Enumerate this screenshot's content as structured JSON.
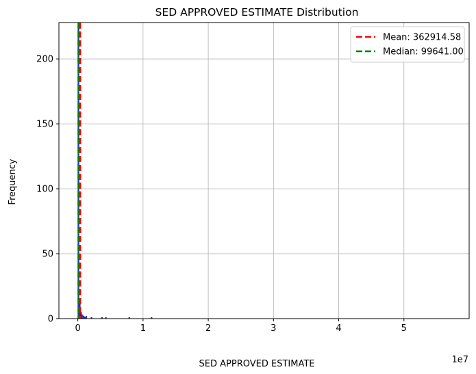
{
  "chart_data": {
    "type": "histogram",
    "title": "SED APPROVED ESTIMATE Distribution",
    "xlabel": "SED APPROVED ESTIMATE",
    "ylabel": "Frequency",
    "x_scale_label": "1e7",
    "xlim": [
      -2900000,
      60000000
    ],
    "ylim": [
      0,
      228
    ],
    "x_ticks": [
      0,
      10000000,
      20000000,
      30000000,
      40000000,
      50000000
    ],
    "x_tick_labels": [
      "0",
      "1",
      "2",
      "3",
      "4",
      "5"
    ],
    "y_ticks": [
      0,
      50,
      100,
      150,
      200
    ],
    "y_tick_labels": [
      "0",
      "50",
      "100",
      "150",
      "200"
    ],
    "grid": true,
    "bar_color": "#3333cc",
    "bins": [
      {
        "x0": 0,
        "x1": 200000,
        "count": 226
      },
      {
        "x0": 200000,
        "x1": 400000,
        "count": 14
      },
      {
        "x0": 400000,
        "x1": 600000,
        "count": 5
      },
      {
        "x0": 600000,
        "x1": 800000,
        "count": 3
      },
      {
        "x0": 800000,
        "x1": 1000000,
        "count": 2
      },
      {
        "x0": 1000000,
        "x1": 1200000,
        "count": 1
      },
      {
        "x0": 1200000,
        "x1": 1400000,
        "count": 2
      },
      {
        "x0": 2000000,
        "x1": 2200000,
        "count": 1
      },
      {
        "x0": 3600000,
        "x1": 3800000,
        "count": 1
      },
      {
        "x0": 4200000,
        "x1": 4400000,
        "count": 1
      },
      {
        "x0": 7800000,
        "x1": 8000000,
        "count": 1
      },
      {
        "x0": 11200000,
        "x1": 11400000,
        "count": 1
      }
    ],
    "reference_lines": [
      {
        "label": "Mean: 362914.58",
        "value": 362914.58,
        "color": "#ff0000"
      },
      {
        "label": "Median: 99641.00",
        "value": 99641.0,
        "color": "#008000"
      }
    ],
    "legend_position": "top-right"
  }
}
